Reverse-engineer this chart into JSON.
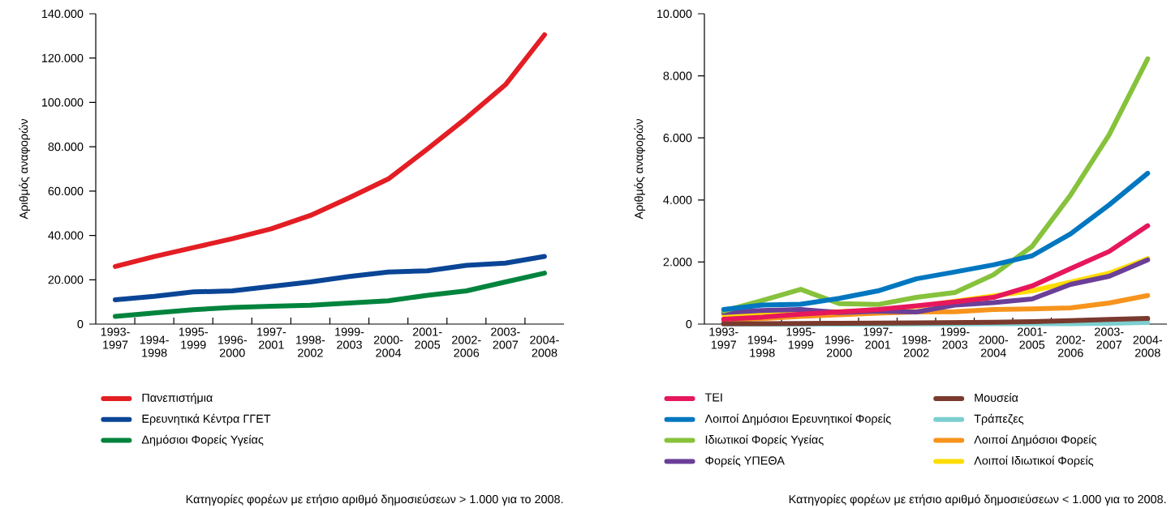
{
  "chart_data": [
    {
      "type": "line",
      "ylabel": "Αριθμός αναφορών",
      "categories": [
        "1993-1997",
        "1994-1998",
        "1995-1999",
        "1996-2000",
        "1997-2001",
        "1998-2002",
        "1999-2003",
        "2000-2004",
        "2001-2005",
        "2002-2006",
        "2003-2007",
        "2004-2008"
      ],
      "series": [
        {
          "name": "Πανεπιστήμια",
          "color": "#e31e24",
          "values": [
            26000,
            30500,
            34500,
            38500,
            43000,
            49000,
            57000,
            65500,
            79000,
            93000,
            108000,
            130500
          ]
        },
        {
          "name": "Ερευνητικά Κέντρα ΓΓΕΤ",
          "color": "#0a4596",
          "values": [
            11000,
            12500,
            14500,
            15000,
            17000,
            19000,
            21500,
            23500,
            24000,
            26500,
            27500,
            30500
          ]
        },
        {
          "name": "Δημόσιοι Φορείς Υγείας",
          "color": "#00843d",
          "values": [
            3500,
            5000,
            6500,
            7500,
            8000,
            8500,
            9500,
            10500,
            13000,
            15000,
            19000,
            23000
          ]
        }
      ],
      "ylim": [
        0,
        140000
      ],
      "yticks": [
        0,
        {
          "value": 20000,
          "label": "20.000"
        },
        {
          "value": 40000,
          "label": "40.000"
        },
        {
          "value": 60000,
          "label": "60.000"
        },
        {
          "value": 80000,
          "label": "80.000"
        },
        {
          "value": 100000,
          "label": "100.000"
        },
        {
          "value": 120000,
          "label": "120.000"
        },
        {
          "value": 140000,
          "label": "140.000"
        }
      ],
      "legend": "bottom",
      "annotations": [
        "Κατηγορίες φορέων με ετήσιο αριθμό δημοσιεύσεων > 1.000 για το 2008."
      ]
    },
    {
      "type": "line",
      "ylabel": "Αριθμός αναφορών",
      "categories": [
        "1993-1997",
        "1994-1998",
        "1995-1999",
        "1996-2000",
        "1997-2001",
        "1998-2002",
        "1999-2003",
        "2000-2004",
        "2001-2005",
        "2002-2006",
        "2003-2007",
        "2004-2008"
      ],
      "series": [
        {
          "name": "ΤΕΙ",
          "color": "#e6175c",
          "values": [
            160,
            225,
            320,
            390,
            470,
            585,
            720,
            860,
            1230,
            1790,
            2340,
            3170
          ]
        },
        {
          "name": "Λοιποί Δημόσιοι Ερευνητικοί Φορείς",
          "color": "#0077c0",
          "values": [
            470,
            615,
            640,
            830,
            1070,
            1460,
            1680,
            1910,
            2200,
            2910,
            3840,
            4860
          ]
        },
        {
          "name": "Ιδιωτικοί Φορείς Υγείας",
          "color": "#86c23b",
          "values": [
            420,
            760,
            1120,
            660,
            630,
            860,
            1020,
            1590,
            2500,
            4160,
            6100,
            8550
          ]
        },
        {
          "name": "Φορείς ΥΠΕΘΑ",
          "color": "#6b3f98",
          "values": [
            370,
            440,
            470,
            370,
            420,
            390,
            615,
            690,
            810,
            1280,
            1540,
            2070
          ]
        },
        {
          "name": "Μουσεία",
          "color": "#7a3a2e",
          "values": [
            10,
            15,
            20,
            25,
            30,
            40,
            50,
            60,
            80,
            110,
            150,
            180
          ]
        },
        {
          "name": "Τράπεζες",
          "color": "#7ccfd0",
          "values": [
            0,
            0,
            0,
            0,
            0,
            5,
            5,
            10,
            10,
            15,
            25,
            50
          ]
        },
        {
          "name": "Λοιποί Δημόσιοι Φορείς",
          "color": "#f7941d",
          "values": [
            130,
            175,
            245,
            300,
            350,
            390,
            400,
            470,
            490,
            520,
            680,
            920
          ]
        },
        {
          "name": "Λοιποί Ιδιωτικοί Φορείς",
          "color": "#ffdd00",
          "values": [
            300,
            330,
            370,
            400,
            450,
            565,
            740,
            910,
            1070,
            1350,
            1640,
            2110
          ]
        }
      ],
      "ylim": [
        0,
        10000
      ],
      "yticks": [
        0,
        {
          "value": 2000,
          "label": "2.000"
        },
        {
          "value": 4000,
          "label": "4.000"
        },
        {
          "value": 6000,
          "label": "6.000"
        },
        {
          "value": 8000,
          "label": "8.000"
        },
        {
          "value": 10000,
          "label": "10.000"
        }
      ],
      "legend": "bottom",
      "annotations": [
        "Κατηγορίες φορέων με ετήσιο αριθμό δημοσιεύσεων < 1.000 για το 2008."
      ]
    }
  ]
}
